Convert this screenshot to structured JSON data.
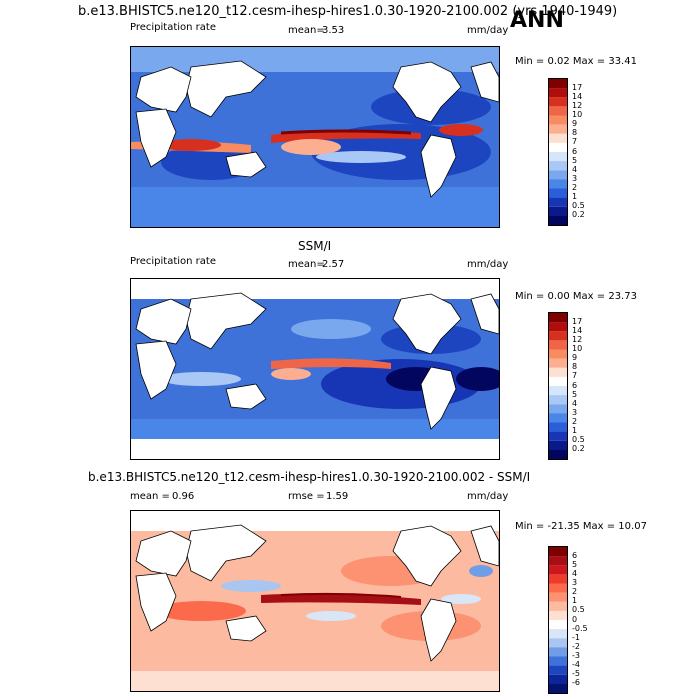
{
  "season": "ANN",
  "panels": [
    {
      "title": "b.e13.BHISTC5.ne120_t12.cesm-ihesp-hires1.0.30-1920-2100.002 (yrs 1940-1949)",
      "variable": "Precipitation rate",
      "mean_label": "mean=",
      "mean_value": "3.53",
      "units": "mm/day",
      "minmax": "Min =  0.02 Max =  33.41",
      "colorbar": [
        "17",
        "14",
        "12",
        "10",
        "9",
        "8",
        "7",
        "6",
        "5",
        "4",
        "3",
        "2",
        "1",
        "0.5",
        "0.2"
      ]
    },
    {
      "title": "SSM/I",
      "variable": "Precipitation rate",
      "mean_label": "mean=",
      "mean_value": "2.57",
      "units": "mm/day",
      "minmax": "Min =  0.00 Max =  23.73",
      "colorbar": [
        "17",
        "14",
        "12",
        "10",
        "9",
        "8",
        "7",
        "6",
        "5",
        "4",
        "3",
        "2",
        "1",
        "0.5",
        "0.2"
      ]
    },
    {
      "title": "b.e13.BHISTC5.ne120_t12.cesm-ihesp-hires1.0.30-1920-2100.002 - SSM/I",
      "mean_label": "mean =",
      "mean_value": "0.96",
      "rmse_label": "rmse =",
      "rmse_value": "1.59",
      "units": "mm/day",
      "minmax": "Min = -21.35 Max =  10.07",
      "colorbar": [
        "6",
        "5",
        "4",
        "3",
        "2",
        "1",
        "0.5",
        "0",
        "-0.5",
        "-1",
        "-2",
        "-3",
        "-4",
        "-5",
        "-6"
      ]
    }
  ],
  "colors": {
    "precip_scale": [
      "#7f0000",
      "#b00d0d",
      "#d7301f",
      "#ef6548",
      "#f98b60",
      "#fcae91",
      "#fde0d2",
      "#ffffff",
      "#d6e6fa",
      "#a9c8f5",
      "#7aa8ef",
      "#4a85e8",
      "#2a5fd9",
      "#1736b5",
      "#0b1a8a",
      "#03065e"
    ],
    "diff_scale": [
      "#7f0000",
      "#a50f15",
      "#cb181d",
      "#ef3b2c",
      "#fb6a4a",
      "#fc9272",
      "#fcbba1",
      "#fee0d2",
      "#ffffff",
      "#d8e6f8",
      "#a8c6f0",
      "#6f9ee6",
      "#3e72d9",
      "#1d45c0",
      "#0c2699",
      "#041270"
    ]
  },
  "chart_data": [
    {
      "type": "heatmap",
      "title": "b.e13.BHISTC5.ne120_t12.cesm-ihesp-hires1.0.30-1920-2100.002 (yrs 1940-1949)",
      "variable": "Precipitation rate",
      "units": "mm/day",
      "mean": 3.53,
      "min": 0.02,
      "max": 33.41,
      "levels": [
        0.2,
        0.5,
        1,
        2,
        3,
        4,
        5,
        6,
        7,
        8,
        9,
        10,
        12,
        14,
        17
      ]
    },
    {
      "type": "heatmap",
      "title": "SSM/I",
      "variable": "Precipitation rate",
      "units": "mm/day",
      "mean": 2.57,
      "min": 0.0,
      "max": 23.73,
      "levels": [
        0.2,
        0.5,
        1,
        2,
        3,
        4,
        5,
        6,
        7,
        8,
        9,
        10,
        12,
        14,
        17
      ]
    },
    {
      "type": "heatmap",
      "title": "b.e13.BHISTC5.ne120_t12.cesm-ihesp-hires1.0.30-1920-2100.002 - SSM/I",
      "units": "mm/day",
      "mean": 0.96,
      "rmse": 1.59,
      "min": -21.35,
      "max": 10.07,
      "levels": [
        -6,
        -5,
        -4,
        -3,
        -2,
        -1,
        -0.5,
        0,
        0.5,
        1,
        2,
        3,
        4,
        5,
        6
      ]
    }
  ]
}
